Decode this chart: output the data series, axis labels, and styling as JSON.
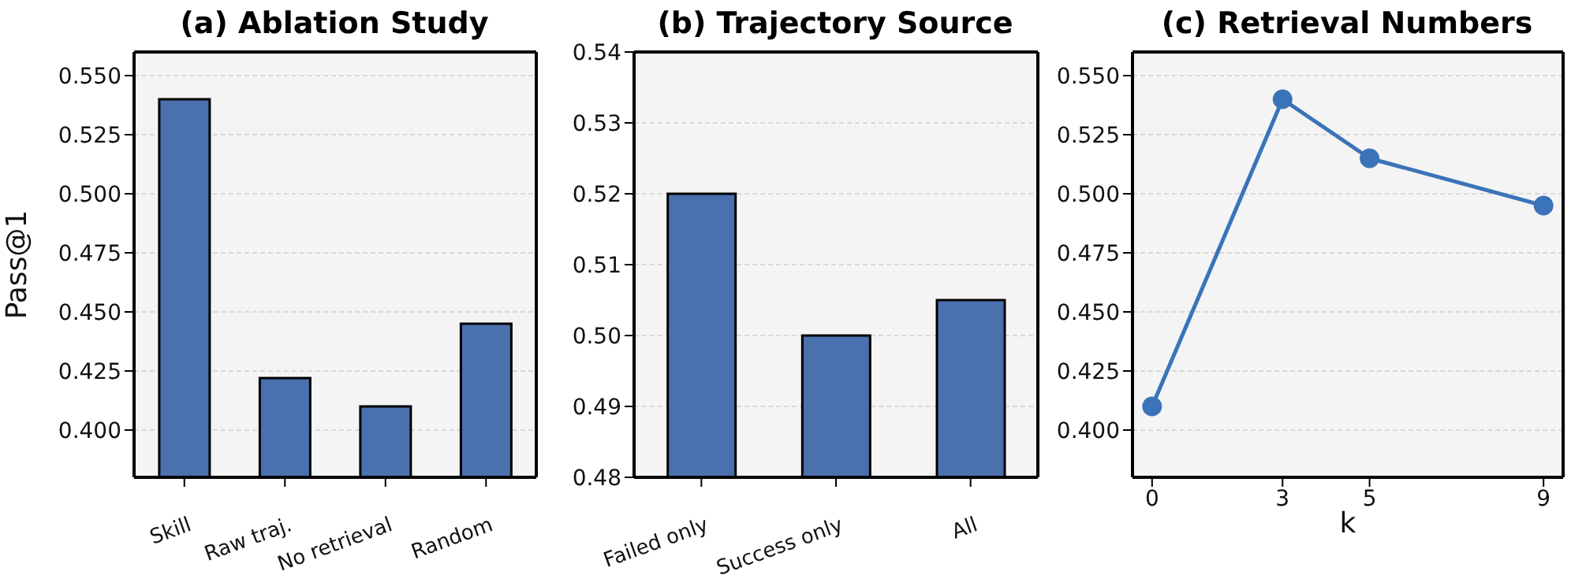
{
  "chart_data": [
    {
      "type": "bar",
      "title": "(a) Ablation Study",
      "ylabel": "Pass@1",
      "categories": [
        "Skill",
        "Raw traj.",
        "No retrieval",
        "Random"
      ],
      "values": [
        0.54,
        0.422,
        0.41,
        0.445
      ],
      "color": "#4a70ae",
      "ylim": [
        0.38,
        0.56
      ],
      "yticks": [
        {
          "value": 0.4,
          "label": "0.400"
        },
        {
          "value": 0.425,
          "label": "0.425"
        },
        {
          "value": 0.45,
          "label": "0.450"
        },
        {
          "value": 0.475,
          "label": "0.475"
        },
        {
          "value": 0.5,
          "label": "0.500"
        },
        {
          "value": 0.525,
          "label": "0.525"
        },
        {
          "value": 0.55,
          "label": "0.550"
        }
      ],
      "grid": "y"
    },
    {
      "type": "bar",
      "title": "(b) Trajectory Source",
      "categories": [
        "Failed only",
        "Success only",
        "All"
      ],
      "values": [
        0.52,
        0.5,
        0.505
      ],
      "color": "#4a70ae",
      "ylim": [
        0.48,
        0.54
      ],
      "yticks": [
        0.48,
        0.49,
        {
          "value": 0.5,
          "label": "0.50"
        },
        0.51,
        0.52,
        0.53,
        0.54
      ],
      "grid": "y"
    },
    {
      "type": "line",
      "title": "(c) Retrieval Numbers",
      "xlabel": "k",
      "x": [
        0,
        3,
        5,
        9
      ],
      "values": [
        0.41,
        0.54,
        0.515,
        0.495
      ],
      "color": "#3a73b8",
      "marker": "circle",
      "xlim": [
        -0.45,
        9.45
      ],
      "xticks": [
        0,
        3,
        5,
        9
      ],
      "ylim": [
        0.38,
        0.56
      ],
      "yticks": [
        {
          "value": 0.4,
          "label": "0.400"
        },
        {
          "value": 0.425,
          "label": "0.425"
        },
        {
          "value": 0.45,
          "label": "0.450"
        },
        {
          "value": 0.475,
          "label": "0.475"
        },
        {
          "value": 0.5,
          "label": "0.500"
        },
        {
          "value": 0.525,
          "label": "0.525"
        },
        {
          "value": 0.55,
          "label": "0.550"
        }
      ],
      "grid": "y"
    }
  ]
}
